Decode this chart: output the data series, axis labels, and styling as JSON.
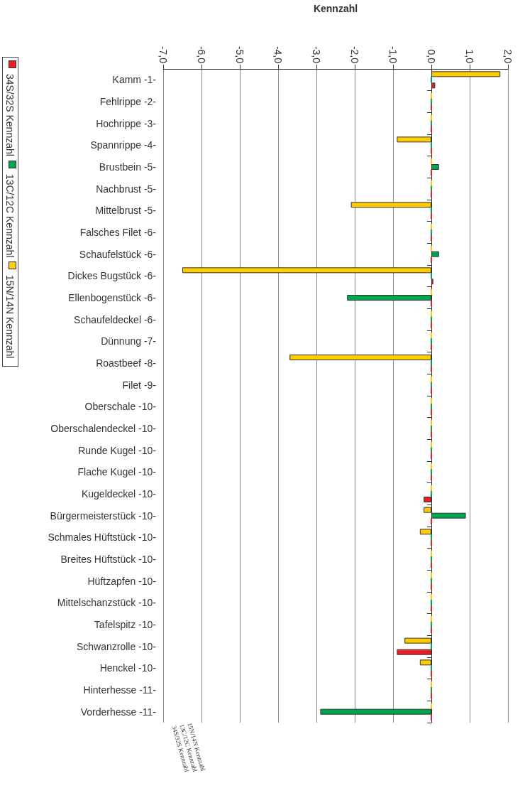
{
  "chart_data": {
    "type": "bar",
    "orientation": "horizontal",
    "xlabel": "Kennzahl",
    "categories": [
      "Kamm -1-",
      "Fehlrippe -2-",
      "Hochrippe -3-",
      "Spannrippe -4-",
      "Brustbein -5-",
      "Nachbrust -5-",
      "Mittelbrust -5-",
      "Falsches Filet -6-",
      "Schaufelstück -6-",
      "Dickes Bugstück -6-",
      "Ellenbogenstück -6-",
      "Schaufeldeckel -6-",
      "Dünnung -7-",
      "Roastbeef -8-",
      "Filet -9-",
      "Oberschale -10-",
      "Oberschalendeckel -10-",
      "Runde Kugel -10-",
      "Flache Kugel -10-",
      "Kugeldeckel -10-",
      "Bürgermeisterstück -10-",
      "Schmales Hüftstück -10-",
      "Breites Hüftstück -10-",
      "Hüftzapfen -10-",
      "Mittelschanzstück -10-",
      "Tafelspitz -10-",
      "Schwanzrolle -10-",
      "Henckel -10-",
      "Hinterhesse -11-",
      "Vorderhesse -11-"
    ],
    "series": [
      {
        "name": "34S/32S Kennzahl",
        "color": "#ee1c25",
        "values": [
          0.1,
          0,
          0,
          0,
          0,
          0,
          0,
          0,
          0,
          0.05,
          0,
          0,
          0,
          0,
          0,
          0,
          0,
          0,
          0,
          -0.2,
          0,
          0,
          0,
          0,
          0,
          0,
          -0.9,
          0,
          0,
          0
        ]
      },
      {
        "name": "13C/12C Kennzahl",
        "color": "#00a550",
        "values": [
          0,
          0,
          0,
          0,
          0.2,
          0,
          0,
          0,
          0.2,
          0,
          -2.2,
          0,
          0,
          0,
          0,
          0,
          0,
          0,
          0,
          0,
          0.9,
          0,
          0,
          0,
          0,
          0,
          0,
          0,
          0,
          -2.9
        ]
      },
      {
        "name": "15N/14N Kennzahl",
        "color": "#ffcc00",
        "values": [
          1.8,
          0,
          0,
          -0.9,
          0,
          0,
          -2.1,
          0,
          0,
          -6.5,
          0,
          0,
          0,
          -3.7,
          0,
          0,
          0,
          0,
          0,
          0,
          -0.2,
          -0.3,
          0,
          0,
          0,
          0,
          -0.7,
          -0.3,
          0,
          0
        ]
      }
    ],
    "xlim": [
      -7,
      2
    ],
    "xticks": [
      {
        "value": -7,
        "label": "-7,0"
      },
      {
        "value": -6,
        "label": "-6,0"
      },
      {
        "value": -5,
        "label": "-5,0"
      },
      {
        "value": -4,
        "label": "-4,0"
      },
      {
        "value": -3,
        "label": "-3,0"
      },
      {
        "value": -2,
        "label": "-2,0"
      },
      {
        "value": -1,
        "label": "-1,0"
      },
      {
        "value": 0,
        "label": "0,0"
      },
      {
        "value": 1,
        "label": "1,0"
      },
      {
        "value": 2,
        "label": "2,0"
      }
    ],
    "grid": "x",
    "legend": "left"
  }
}
